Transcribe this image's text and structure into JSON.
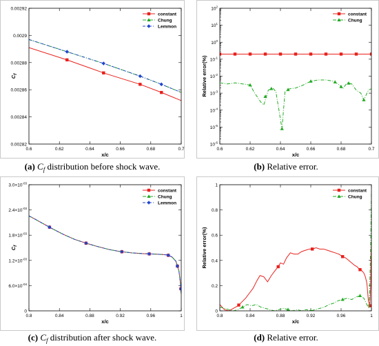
{
  "chart_data": [
    {
      "type": "line",
      "caption_label": "(a)",
      "caption_sym": "C",
      "caption_sub": "f",
      "caption_text": "distribution before shock wave.",
      "xlabel": "x/c",
      "ylabel_main": "C",
      "ylabel_sub": "f",
      "xlim": [
        0.6,
        0.7
      ],
      "ylim": [
        0.00282,
        0.00292
      ],
      "xticks": [
        0.6,
        0.62,
        0.64,
        0.66,
        0.68,
        0.7
      ],
      "xtick_labels": [
        "0.6",
        "0.62",
        "0.64",
        "0.66",
        "0.68",
        "0.7"
      ],
      "yticks": [
        0.00282,
        0.00284,
        0.00286,
        0.00288,
        0.0029,
        0.00292
      ],
      "ytick_labels": [
        "0.00282",
        "0.00284",
        "0.00286",
        "0.00288",
        "0.0029",
        "0.00292"
      ],
      "legend": "top-right",
      "series": [
        {
          "name": "constant",
          "color": "#e8201c",
          "dash": "",
          "marker": "square",
          "x": [
            0.6,
            0.625,
            0.65,
            0.673,
            0.687,
            0.7
          ],
          "y": [
            0.002891,
            0.002882,
            0.002872,
            0.002864,
            0.002858,
            0.002852
          ],
          "mx": [
            0.625,
            0.649,
            0.673,
            0.687
          ]
        },
        {
          "name": "Chung",
          "color": "#22aa22",
          "dash": "5,2,1,2",
          "marker": "triangle",
          "x": [
            0.6,
            0.625,
            0.65,
            0.673,
            0.687,
            0.7
          ],
          "y": [
            0.002897,
            0.002888,
            0.002879,
            0.00287,
            0.002864,
            0.002858
          ],
          "mx": []
        },
        {
          "name": "Lemmon",
          "color": "#2244cc",
          "dash": "4,2,1,2",
          "marker": "diamond",
          "x": [
            0.6,
            0.625,
            0.65,
            0.673,
            0.687,
            0.7
          ],
          "y": [
            0.002897,
            0.002888,
            0.002879,
            0.00287,
            0.002864,
            0.002858
          ],
          "mx": [
            0.625,
            0.649,
            0.673,
            0.687
          ]
        }
      ]
    },
    {
      "type": "line",
      "caption_label": "(b)",
      "caption_text": "Relative error.",
      "xlabel": "x/c",
      "ylabel": "Relative error(%)",
      "xlim": [
        0.6,
        0.7
      ],
      "ylim_log10": [
        -6,
        2
      ],
      "yscale": "log",
      "xticks": [
        0.6,
        0.62,
        0.64,
        0.66,
        0.68,
        0.7
      ],
      "xtick_labels": [
        "0.6",
        "0.62",
        "0.64",
        "0.66",
        "0.68",
        "0.7"
      ],
      "yticks_log10": [
        -6,
        -5,
        -4,
        -3,
        -2,
        -1,
        0,
        1,
        2
      ],
      "ytick_base": "10",
      "ytick_exps": [
        "-6",
        "-5",
        "-4",
        "-3",
        "-2",
        "-1",
        "0",
        "1",
        "2"
      ],
      "legend": "top-right",
      "series": [
        {
          "name": "constant",
          "color": "#e8201c",
          "dash": "",
          "marker": "square",
          "x": [
            0.6,
            0.7
          ],
          "y": [
            0.2,
            0.2
          ],
          "mx": [
            0.6,
            0.61,
            0.62,
            0.63,
            0.64,
            0.65,
            0.66,
            0.67,
            0.68,
            0.69,
            0.7
          ]
        },
        {
          "name": "Chung",
          "color": "#22aa22",
          "dash": "5,2,1,2",
          "marker": "triangle",
          "x": [
            0.6,
            0.605,
            0.61,
            0.615,
            0.62,
            0.623,
            0.627,
            0.629,
            0.632,
            0.635,
            0.637,
            0.639,
            0.641,
            0.643,
            0.646,
            0.65,
            0.655,
            0.66,
            0.665,
            0.67,
            0.675,
            0.679,
            0.681,
            0.684,
            0.687,
            0.69,
            0.693,
            0.695,
            0.698,
            0.7
          ],
          "y": [
            0.004,
            0.0035,
            0.004,
            0.0035,
            0.003,
            0.001,
            0.0003,
            0.0002,
            0.0015,
            0.002,
            0.0012,
            0.0001,
            8e-06,
            0.0012,
            0.0018,
            0.002,
            0.003,
            0.005,
            0.006,
            0.006,
            0.005,
            0.003,
            0.0018,
            0.004,
            0.0035,
            0.0015,
            0.001,
            0.0004,
            0.0015,
            0.0018
          ],
          "mx": [
            0.62,
            0.63,
            0.634,
            0.641,
            0.645,
            0.66,
            0.676,
            0.68,
            0.685,
            0.695
          ]
        }
      ]
    },
    {
      "type": "line",
      "caption_label": "(c)",
      "caption_sym": "C",
      "caption_sub": "f",
      "caption_text": "distribution after shock wave.",
      "xlabel": "x/c",
      "ylabel_main": "C",
      "ylabel_sub": "f",
      "xlim": [
        0.8,
        1.0
      ],
      "ylim": [
        0,
        0.003
      ],
      "xticks": [
        0.8,
        0.84,
        0.88,
        0.92,
        0.96,
        1.0
      ],
      "xtick_labels": [
        "0.8",
        "0.84",
        "0.88",
        "0.92",
        "0.96",
        "1"
      ],
      "yticks": [
        0,
        0.0006,
        0.0012,
        0.0018,
        0.0024,
        0.003
      ],
      "ytick_labels": [
        "0",
        "6.0×10",
        "1.2×10",
        "1.8×10",
        "2.4×10",
        "3.0×10"
      ],
      "ytick_exps": [
        "",
        "-04",
        "-03",
        "-03",
        "-03",
        "-03"
      ],
      "legend": "top-right",
      "series": [
        {
          "name": "constant",
          "color": "#e8201c",
          "dash": "",
          "marker": "square",
          "x": [
            0.8,
            0.81,
            0.82,
            0.83,
            0.845,
            0.86,
            0.875,
            0.89,
            0.905,
            0.92,
            0.935,
            0.95,
            0.965,
            0.975,
            0.982,
            0.988,
            0.993,
            0.997,
            0.999,
            1.0
          ],
          "y": [
            0.00226,
            0.00216,
            0.00206,
            0.00196,
            0.00182,
            0.0017,
            0.00161,
            0.00153,
            0.00146,
            0.00141,
            0.00138,
            0.00136,
            0.00135,
            0.00134,
            0.00133,
            0.00128,
            0.00118,
            0.00095,
            0.00065,
            0.0004
          ],
          "mx": [
            0.827,
            0.875,
            0.922,
            0.958,
            0.983,
            0.995,
            0.9995
          ]
        },
        {
          "name": "Chung",
          "color": "#22aa22",
          "dash": "5,2,1,2",
          "marker": "triangle",
          "x": [
            0.8,
            0.81,
            0.82,
            0.83,
            0.845,
            0.86,
            0.875,
            0.89,
            0.905,
            0.92,
            0.935,
            0.95,
            0.965,
            0.975,
            0.982,
            0.988,
            0.993,
            0.997,
            0.999,
            1.0
          ],
          "y": [
            0.00226,
            0.00216,
            0.00206,
            0.00196,
            0.00182,
            0.0017,
            0.00161,
            0.00153,
            0.00146,
            0.00141,
            0.00138,
            0.00136,
            0.00135,
            0.00134,
            0.00133,
            0.00128,
            0.00118,
            0.00095,
            0.00065,
            0.0004
          ],
          "mx": []
        },
        {
          "name": "Lemmon",
          "color": "#2244cc",
          "dash": "4,2,1,2",
          "marker": "diamond",
          "x": [
            0.8,
            0.81,
            0.82,
            0.83,
            0.845,
            0.86,
            0.875,
            0.89,
            0.905,
            0.92,
            0.935,
            0.95,
            0.965,
            0.975,
            0.982,
            0.988,
            0.993,
            0.997,
            0.999,
            1.0
          ],
          "y": [
            0.00226,
            0.00216,
            0.00206,
            0.00196,
            0.00182,
            0.0017,
            0.00161,
            0.00153,
            0.00146,
            0.00141,
            0.00138,
            0.00136,
            0.00135,
            0.00134,
            0.00133,
            0.00128,
            0.00118,
            0.00095,
            0.00065,
            0.0004
          ],
          "mx": [
            0.827,
            0.875,
            0.922,
            0.958,
            0.983,
            0.995,
            0.9995
          ]
        }
      ]
    },
    {
      "type": "line",
      "caption_label": "(d)",
      "caption_text": "Relative error.",
      "xlabel": "x/c",
      "ylabel": "Relative error(%)",
      "xlim": [
        0.8,
        1.0
      ],
      "ylim": [
        0,
        1
      ],
      "xticks": [
        0.8,
        0.84,
        0.88,
        0.92,
        0.96,
        1.0
      ],
      "xtick_labels": [
        "0.8",
        "0.84",
        "0.88",
        "0.92",
        "0.96",
        "1"
      ],
      "yticks": [
        0,
        0.2,
        0.4,
        0.6,
        0.8,
        1
      ],
      "ytick_labels": [
        "0",
        "0.2",
        "0.4",
        "0.6",
        "0.8",
        "1"
      ],
      "legend": "top-right",
      "series": [
        {
          "name": "constant",
          "color": "#e8201c",
          "dash": "",
          "marker": "square",
          "x": [
            0.8,
            0.806,
            0.812,
            0.818,
            0.824,
            0.829,
            0.834,
            0.839,
            0.844,
            0.849,
            0.853,
            0.858,
            0.863,
            0.868,
            0.873,
            0.877,
            0.88,
            0.884,
            0.888,
            0.893,
            0.898,
            0.903,
            0.908,
            0.913,
            0.918,
            0.922,
            0.927,
            0.932,
            0.937,
            0.942,
            0.947,
            0.952,
            0.957,
            0.962,
            0.966,
            0.97,
            0.974,
            0.978,
            0.981,
            0.984,
            0.987,
            0.99,
            0.992,
            0.994,
            0.996,
            0.998,
            0.999,
            1.0
          ],
          "y": [
            0.05,
            0.01,
            0.0,
            0.02,
            0.04,
            0.07,
            0.1,
            0.14,
            0.18,
            0.24,
            0.28,
            0.27,
            0.23,
            0.28,
            0.32,
            0.35,
            0.38,
            0.37,
            0.42,
            0.46,
            0.45,
            0.45,
            0.47,
            0.48,
            0.49,
            0.49,
            0.5,
            0.49,
            0.49,
            0.48,
            0.47,
            0.46,
            0.45,
            0.43,
            0.42,
            0.4,
            0.38,
            0.36,
            0.35,
            0.33,
            0.32,
            0.3,
            0.27,
            0.22,
            0.08,
            0.04,
            0.2,
            0.55
          ],
          "mx": [
            0.825,
            0.877,
            0.922,
            0.962,
            0.985,
            0.998
          ]
        },
        {
          "name": "Chung",
          "color": "#22aa22",
          "dash": "5,2,1,2",
          "marker": "triangle",
          "x": [
            0.8,
            0.806,
            0.812,
            0.818,
            0.824,
            0.83,
            0.836,
            0.842,
            0.848,
            0.854,
            0.86,
            0.866,
            0.872,
            0.878,
            0.884,
            0.89,
            0.896,
            0.902,
            0.908,
            0.914,
            0.92,
            0.926,
            0.932,
            0.938,
            0.944,
            0.95,
            0.956,
            0.962,
            0.968,
            0.974,
            0.98,
            0.985,
            0.99,
            0.994,
            0.997,
            0.999,
            1.0
          ],
          "y": [
            0.03,
            0.02,
            0.01,
            0.0,
            0.01,
            0.03,
            0.05,
            0.04,
            0.05,
            0.03,
            0.02,
            0.01,
            0.0,
            0.01,
            0.02,
            0.01,
            0.0,
            0.01,
            0.0,
            0.01,
            0.0,
            0.01,
            0.02,
            0.03,
            0.05,
            0.06,
            0.08,
            0.09,
            0.1,
            0.09,
            0.11,
            0.12,
            0.1,
            0.05,
            0.02,
            0.5,
            0.95
          ],
          "mx": [
            0.83,
            0.89,
            0.92,
            0.962,
            0.985
          ]
        }
      ]
    }
  ]
}
